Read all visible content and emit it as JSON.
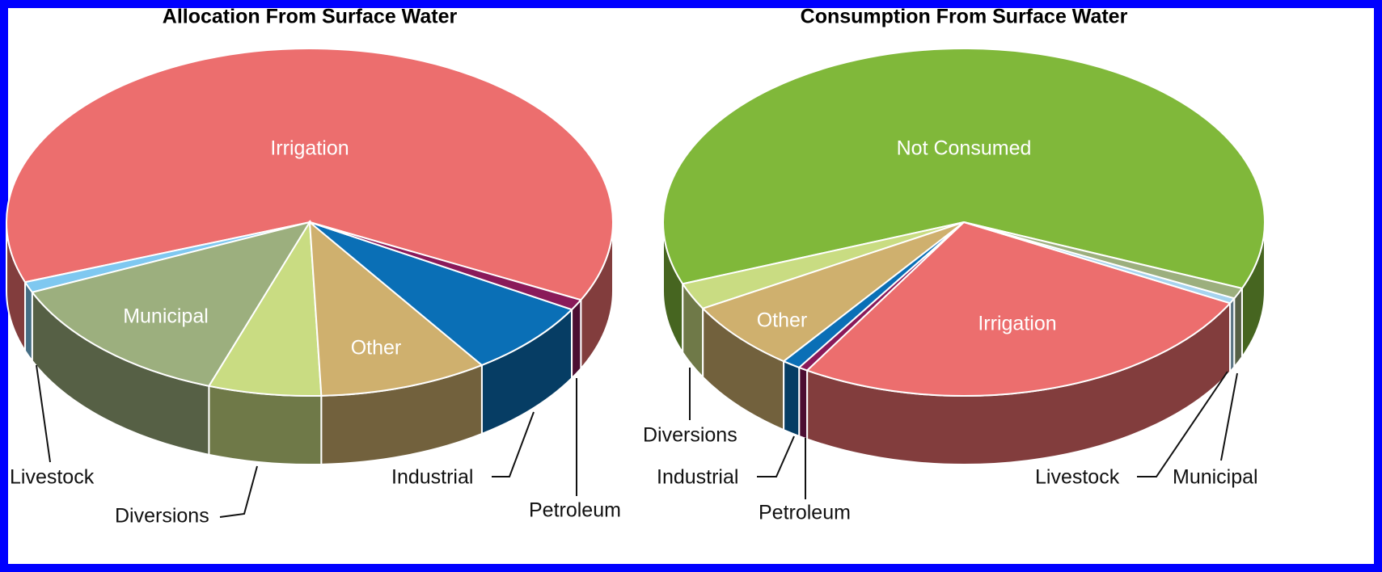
{
  "chart_data": [
    {
      "type": "pie",
      "title": "Allocation From Surface Water",
      "categories": [
        "Irrigation",
        "Livestock",
        "Municipal",
        "Diversions",
        "Other",
        "Industrial",
        "Petroleum"
      ],
      "values": [
        63,
        1,
        13,
        6,
        9,
        7,
        1
      ],
      "colors": [
        "#ec6e6e",
        "#7fc8f0",
        "#9caf7e",
        "#c9dc82",
        "#cfb06e",
        "#0a6fb6",
        "#8a1a5a"
      ]
    },
    {
      "type": "pie",
      "title": "Consumption From Surface Water",
      "categories": [
        "Not Consumed",
        "Diversions",
        "Other",
        "Industrial",
        "Petroleum",
        "Irrigation",
        "Livestock",
        "Municipal"
      ],
      "values": [
        62,
        2.5,
        6.5,
        1,
        0.5,
        26,
        0.5,
        1
      ],
      "colors": [
        "#80b83a",
        "#c9dc82",
        "#cfb06e",
        "#0a6fb6",
        "#8a1a5a",
        "#ec6e6e",
        "#a6d3ee",
        "#9caf7e"
      ]
    }
  ]
}
